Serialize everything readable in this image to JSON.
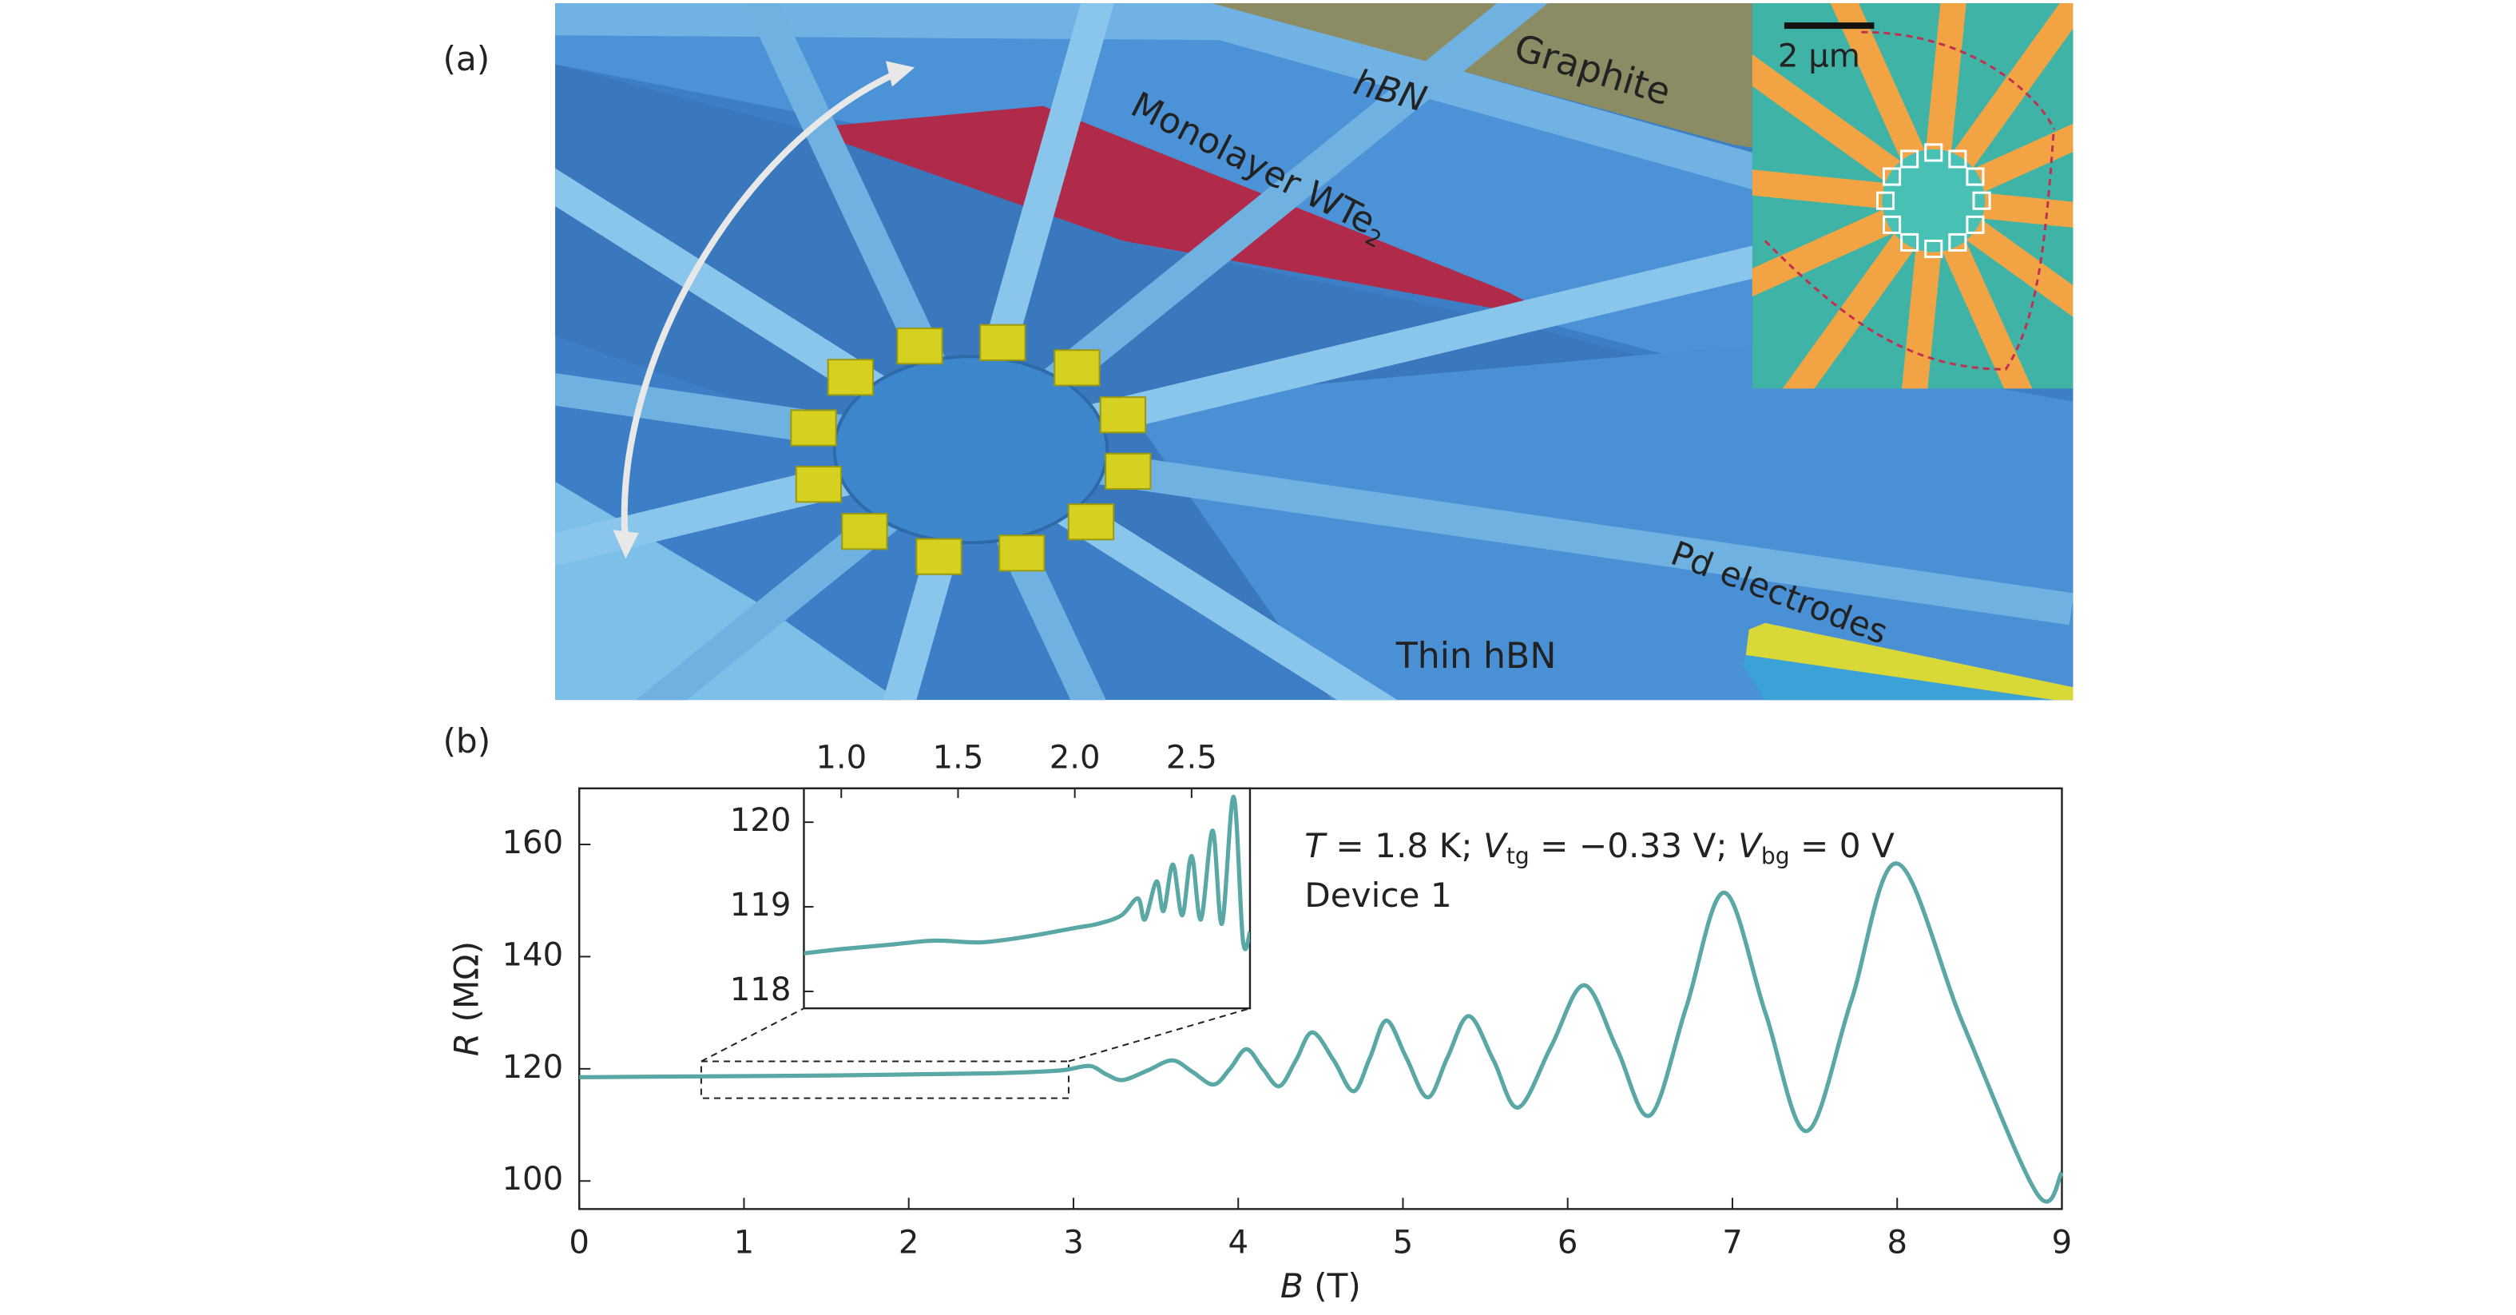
{
  "panels": {
    "a": "(a)",
    "b": "(b)"
  },
  "illustration": {
    "labels": {
      "hbn": "hBN",
      "graphite": "Graphite",
      "wte2": [
        "Monolayer WTe",
        "2"
      ],
      "pd": "Pd electrodes",
      "thin_hbn": "Thin hBN",
      "scale_bar": "2 μm"
    }
  },
  "chart_data": {
    "type": "line",
    "x_label": [
      "B",
      " (T)"
    ],
    "y_label": [
      "R",
      " (MΩ)"
    ],
    "annotation": [
      "T",
      " = 1.8 K; ",
      "V",
      "tg",
      " = −0.33 V; ",
      "V",
      "bg",
      " = 0 V"
    ],
    "annotation_2": "Device 1",
    "x": [
      0,
      0.5,
      1,
      1.5,
      2,
      2.5,
      2.8,
      2.95,
      3.1,
      3.2,
      3.3,
      3.45,
      3.6,
      3.72,
      3.85,
      3.95,
      4.05,
      4.15,
      4.25,
      4.35,
      4.45,
      4.58,
      4.7,
      4.8,
      4.9,
      5.02,
      5.15,
      5.27,
      5.4,
      5.55,
      5.7,
      5.9,
      6.1,
      6.3,
      6.5,
      6.72,
      6.95,
      7.2,
      7.45,
      7.72,
      8.0,
      8.4,
      8.85,
      9.0
    ],
    "series": [
      {
        "color": "#5aa8a6",
        "values": [
          118.5,
          118.6,
          118.7,
          118.8,
          119,
          119.2,
          119.5,
          119.8,
          120.5,
          119,
          118,
          119.7,
          121.5,
          119.5,
          117.2,
          120,
          123.5,
          120,
          116.9,
          121.5,
          126.5,
          121.5,
          116,
          122,
          128.6,
          122,
          114.9,
          122,
          129.4,
          121.5,
          113.1,
          124,
          134.9,
          123.5,
          111.7,
          131,
          151.4,
          130,
          108.9,
          132,
          156.6,
          128,
          97.7,
          101.5
        ]
      }
    ],
    "xlim": [
      0,
      9
    ],
    "ylim": [
      95,
      170
    ],
    "xticks": [
      0,
      1,
      2,
      3,
      4,
      5,
      6,
      7,
      8,
      9
    ],
    "yticks": [
      100,
      120,
      140,
      160
    ],
    "inset": {
      "x": [
        0.84,
        1.0,
        1.2,
        1.4,
        1.6,
        1.8,
        2.0,
        2.1,
        2.2,
        2.27,
        2.3,
        2.35,
        2.38,
        2.42,
        2.46,
        2.5,
        2.54,
        2.59,
        2.63,
        2.68,
        2.72,
        2.75
      ],
      "values": [
        118.45,
        118.5,
        118.55,
        118.6,
        118.58,
        118.65,
        118.75,
        118.8,
        118.9,
        119.1,
        118.85,
        119.3,
        118.95,
        119.5,
        118.9,
        119.6,
        118.85,
        119.9,
        118.8,
        120.3,
        118.6,
        118.7
      ],
      "color": "#5aa8a6",
      "xlim": [
        0.84,
        2.75
      ],
      "ylim": [
        117.8,
        120.4
      ],
      "xticks": [
        {
          "value": 1,
          "label": "1.0"
        },
        1.5,
        {
          "value": 2,
          "label": "2.0"
        },
        2.5
      ],
      "yticks": [
        118,
        119,
        120
      ]
    }
  }
}
